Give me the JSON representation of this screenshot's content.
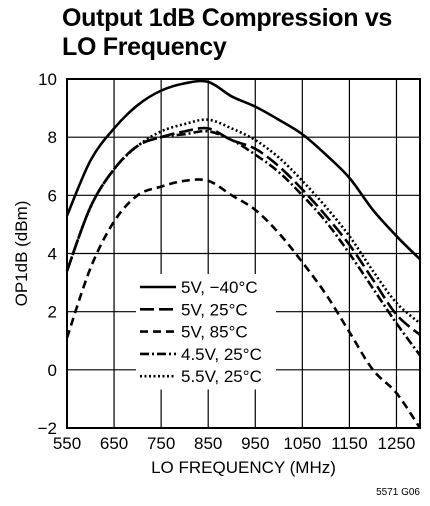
{
  "title_lines": [
    "Output 1dB Compression vs",
    "LO Frequency"
  ],
  "figure_code": "5571 G06",
  "chart_data": {
    "type": "line",
    "title": "Output 1dB Compression vs LO Frequency",
    "xlabel": "LO FREQUENCY (MHz)",
    "ylabel": "OP1dB (dBm)",
    "xlim": [
      550,
      1300
    ],
    "ylim": [
      -2,
      10
    ],
    "xticks": [
      550,
      650,
      750,
      850,
      950,
      1050,
      1150,
      1250
    ],
    "yticks": [
      -2,
      0,
      2,
      4,
      6,
      8,
      10
    ],
    "grid": true,
    "legend_position": "lower-left",
    "series": [
      {
        "name": "5V, −40°C",
        "style": "solid",
        "x": [
          550,
          600,
          650,
          700,
          750,
          800,
          850,
          900,
          950,
          1000,
          1050,
          1100,
          1150,
          1200,
          1250,
          1300
        ],
        "y": [
          5.3,
          7.2,
          8.3,
          9.1,
          9.6,
          9.85,
          9.9,
          9.4,
          9.05,
          8.6,
          8.1,
          7.4,
          6.6,
          5.5,
          4.6,
          3.8
        ]
      },
      {
        "name": "5V, 25°C",
        "style": "longdash",
        "x": [
          550,
          600,
          650,
          700,
          750,
          800,
          850,
          900,
          950,
          1000,
          1050,
          1100,
          1150,
          1200,
          1250,
          1300
        ],
        "y": [
          3.4,
          5.6,
          6.9,
          7.7,
          8.0,
          8.2,
          8.3,
          7.9,
          7.6,
          7.0,
          6.2,
          5.3,
          4.3,
          3.1,
          1.9,
          1.2
        ]
      },
      {
        "name": "5V, 85°C",
        "style": "dash",
        "x": [
          550,
          600,
          650,
          700,
          750,
          800,
          850,
          900,
          950,
          1000,
          1050,
          1100,
          1150,
          1200,
          1250,
          1300
        ],
        "y": [
          1.1,
          3.5,
          5.1,
          6.0,
          6.3,
          6.5,
          6.5,
          6.0,
          5.5,
          4.7,
          3.7,
          2.6,
          1.3,
          0.0,
          -0.8,
          -2.0
        ]
      },
      {
        "name": "4.5V, 25°C",
        "style": "dashdot",
        "x": [
          550,
          600,
          650,
          700,
          750,
          800,
          850,
          900,
          950,
          1000,
          1050,
          1100,
          1150,
          1200,
          1250,
          1300
        ],
        "y": [
          3.4,
          5.6,
          6.9,
          7.7,
          8.0,
          8.1,
          8.2,
          7.9,
          7.4,
          6.8,
          6.0,
          5.1,
          4.0,
          2.8,
          1.6,
          0.5
        ]
      },
      {
        "name": "5.5V, 25°C",
        "style": "dotted",
        "x": [
          550,
          600,
          650,
          700,
          750,
          800,
          850,
          900,
          950,
          1000,
          1050,
          1100,
          1150,
          1200,
          1250,
          1300
        ],
        "y": [
          3.4,
          5.6,
          6.9,
          7.7,
          8.2,
          8.45,
          8.6,
          8.3,
          7.9,
          7.3,
          6.5,
          5.6,
          4.6,
          3.4,
          2.3,
          1.6
        ]
      }
    ]
  }
}
